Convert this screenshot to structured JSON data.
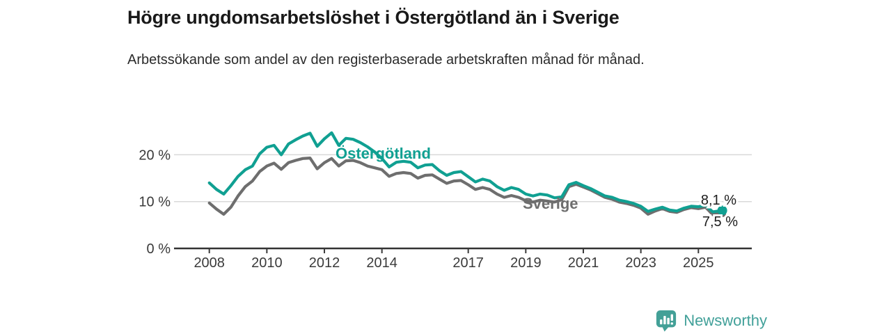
{
  "header": {
    "title": "Högre ungdomsarbetslöshet i Östergötland än i Sverige",
    "subtitle": "Arbetssökande som andel av den registerbaserade arbetskraften månad för månad."
  },
  "chart_data": {
    "type": "line",
    "x": [
      2008.0,
      2008.25,
      2008.5,
      2008.75,
      2009.0,
      2009.25,
      2009.5,
      2009.75,
      2010.0,
      2010.25,
      2010.5,
      2010.75,
      2011.0,
      2011.25,
      2011.5,
      2011.75,
      2012.0,
      2012.25,
      2012.5,
      2012.75,
      2013.0,
      2013.25,
      2013.5,
      2013.75,
      2014.0,
      2014.25,
      2014.5,
      2014.75,
      2015.0,
      2015.25,
      2015.5,
      2015.75,
      2016.0,
      2016.25,
      2016.5,
      2016.75,
      2017.0,
      2017.25,
      2017.5,
      2017.75,
      2018.0,
      2018.25,
      2018.5,
      2018.75,
      2019.0,
      2019.25,
      2019.5,
      2019.75,
      2020.0,
      2020.25,
      2020.5,
      2020.75,
      2021.0,
      2021.25,
      2021.5,
      2021.75,
      2022.0,
      2022.25,
      2022.5,
      2022.75,
      2023.0,
      2023.25,
      2023.5,
      2023.75,
      2024.0,
      2024.25,
      2024.5,
      2024.75,
      2025.0,
      2025.25,
      2025.5,
      2025.83
    ],
    "series": [
      {
        "name": "Östergötland",
        "color": "#10a092",
        "end_label": "8,1 %",
        "values": [
          14.0,
          12.6,
          11.6,
          13.4,
          15.4,
          16.8,
          17.6,
          20.2,
          21.6,
          22.0,
          20.0,
          22.3,
          23.2,
          24.0,
          24.6,
          21.8,
          23.4,
          24.7,
          22.0,
          23.5,
          23.3,
          22.6,
          21.7,
          20.6,
          19.2,
          17.4,
          18.4,
          18.6,
          18.4,
          17.2,
          17.8,
          17.9,
          16.6,
          15.6,
          16.2,
          16.4,
          15.3,
          14.2,
          14.8,
          14.4,
          13.2,
          12.4,
          13.0,
          12.6,
          11.6,
          11.2,
          11.6,
          11.4,
          10.8,
          11.0,
          13.6,
          14.1,
          13.4,
          12.8,
          12.0,
          11.2,
          10.9,
          10.3,
          10.0,
          9.6,
          9.0,
          7.9,
          8.4,
          8.8,
          8.2,
          8.0,
          8.6,
          9.0,
          8.9,
          9.2,
          7.8,
          8.1
        ]
      },
      {
        "name": "Sverige",
        "color": "#6e6e6e",
        "end_label": "7,5 %",
        "values": [
          9.7,
          8.4,
          7.3,
          8.8,
          11.2,
          13.2,
          14.4,
          16.4,
          17.6,
          18.2,
          16.9,
          18.3,
          18.8,
          19.2,
          19.3,
          17.0,
          18.3,
          19.2,
          17.6,
          18.7,
          18.8,
          18.3,
          17.6,
          17.2,
          16.8,
          15.4,
          16.0,
          16.2,
          16.0,
          15.0,
          15.6,
          15.7,
          14.8,
          13.9,
          14.4,
          14.5,
          13.6,
          12.6,
          13.0,
          12.6,
          11.6,
          10.9,
          11.3,
          10.9,
          10.2,
          9.9,
          10.3,
          10.1,
          9.9,
          10.4,
          13.2,
          13.7,
          13.1,
          12.5,
          11.7,
          10.9,
          10.5,
          9.9,
          9.6,
          9.2,
          8.6,
          7.3,
          8.0,
          8.5,
          7.9,
          7.7,
          8.3,
          8.7,
          8.5,
          8.8,
          7.2,
          7.5
        ]
      }
    ],
    "yticks": [
      {
        "value": 0,
        "label": "0 %"
      },
      {
        "value": 10,
        "label": "10 %"
      },
      {
        "value": 20,
        "label": "20 %"
      }
    ],
    "xticks": [
      {
        "value": 2008,
        "label": "2008"
      },
      {
        "value": 2010,
        "label": "2010"
      },
      {
        "value": 2012,
        "label": "2012"
      },
      {
        "value": 2014,
        "label": "2014"
      },
      {
        "value": 2017,
        "label": "2017"
      },
      {
        "value": 2019,
        "label": "2019"
      },
      {
        "value": 2021,
        "label": "2021"
      },
      {
        "value": 2023,
        "label": "2023"
      },
      {
        "value": 2025,
        "label": "2025"
      }
    ],
    "ylim": [
      0,
      27
    ],
    "xlim": [
      2007.2,
      2026.2
    ],
    "grid": "horizontal",
    "legend_position": "inline-labels"
  },
  "footer": {
    "brand": "Newsworthy",
    "logo_color": "#43a097"
  }
}
